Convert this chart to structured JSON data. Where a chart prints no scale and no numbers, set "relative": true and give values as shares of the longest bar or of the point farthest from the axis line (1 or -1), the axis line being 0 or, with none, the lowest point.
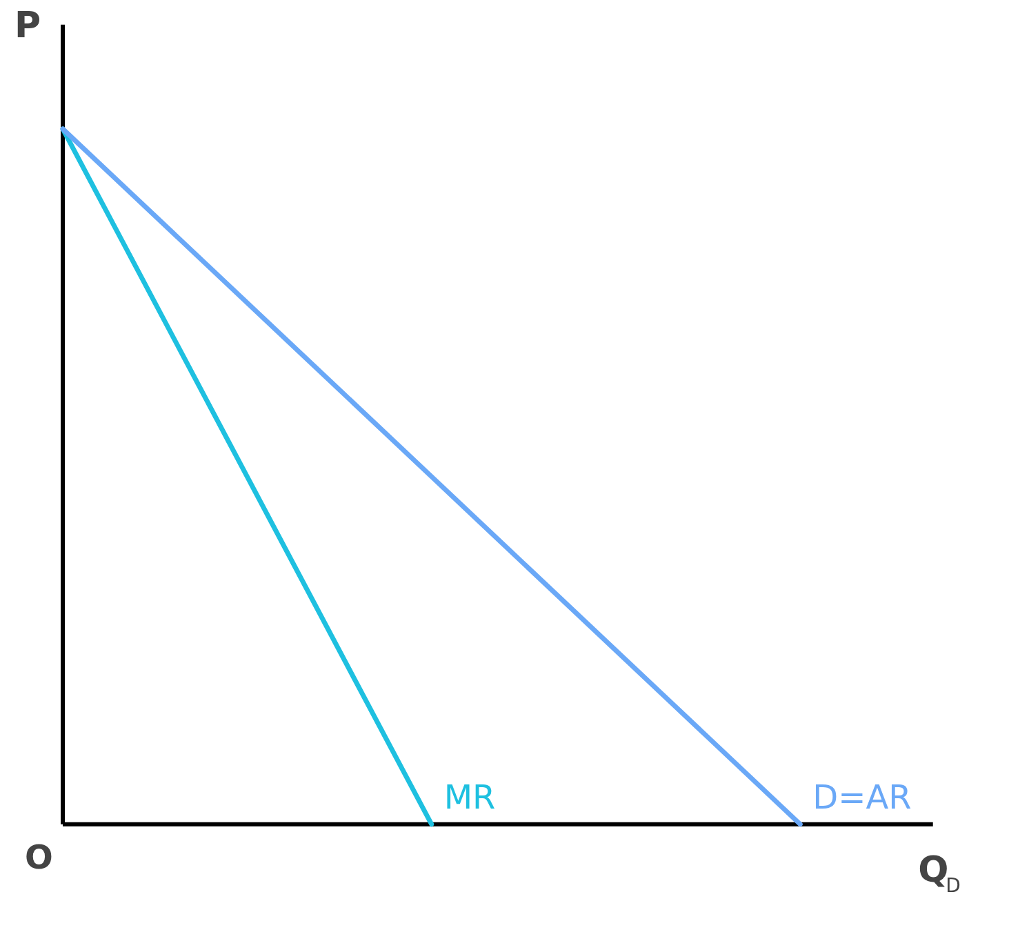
{
  "chart_data": {
    "type": "line",
    "relative": true,
    "xlabel": "Q$_{D}$",
    "ylabel": "P",
    "annotations": [
      "O"
    ],
    "categories": [
      null,
      null,
      null
    ],
    "series": [
      {
        "name": "MR",
        "color": "#1ec0e0",
        "values": [
          1,
          0,
          null
        ]
      },
      {
        "name": "D=AR",
        "color": "#6aa8f7",
        "values": [
          1,
          0.5,
          0
        ]
      }
    ],
    "grid": false,
    "legend": false,
    "marker": "none",
    "line_style": "solid"
  }
}
